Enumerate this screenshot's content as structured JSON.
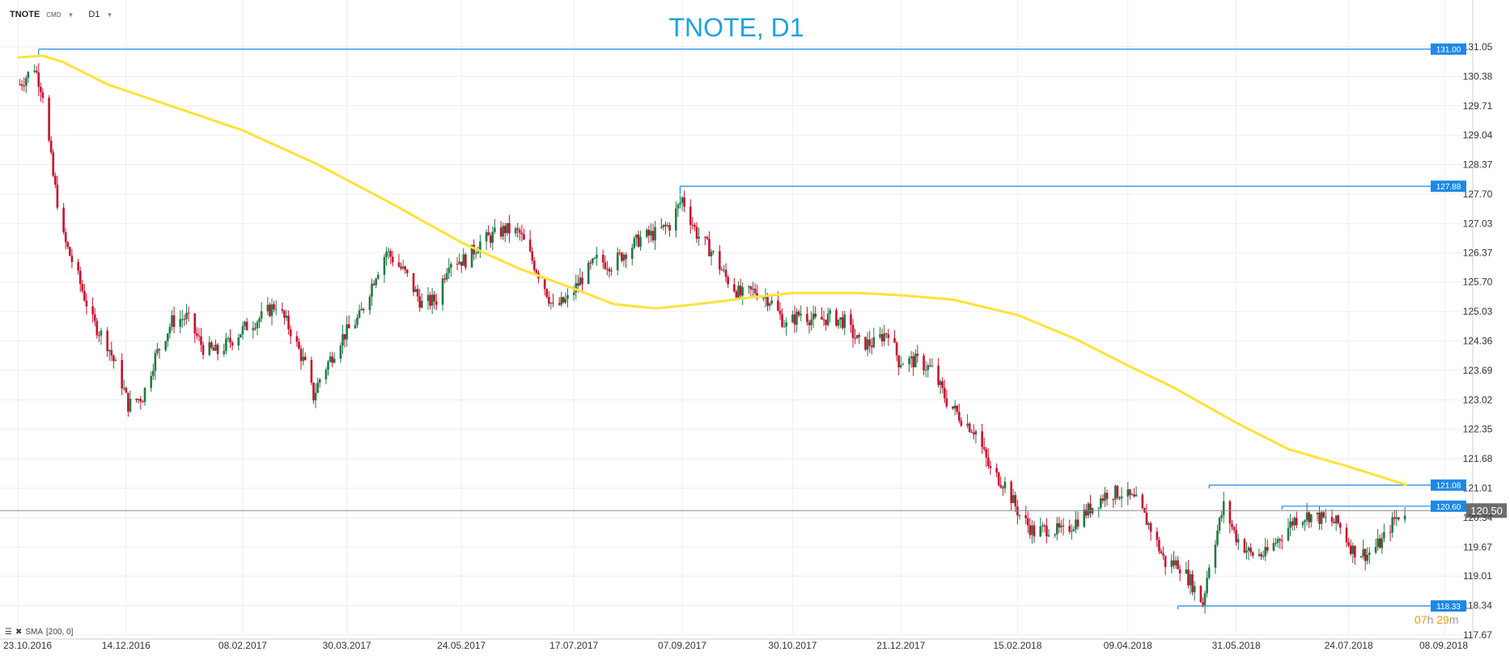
{
  "toolbar": {
    "symbol": "TNOTE",
    "symbol_sub": "CMD",
    "interval": "D1"
  },
  "title": "TNOTE, D1",
  "indicator": {
    "label": "SMA",
    "params": "[200, 0]"
  },
  "timer": {
    "hours": "07",
    "h_unit": "h",
    "minutes": "29",
    "m_unit": "m"
  },
  "colors": {
    "bull": "#1e7b45",
    "bear": "#c8102e",
    "sma": "#ffe238",
    "level": "#1e88e5",
    "grid": "#eeeeee",
    "axis_text": "#333333",
    "current": "#6d6d6d"
  },
  "chart_data": {
    "type": "candlestick",
    "title": "TNOTE, D1",
    "xlabel": "",
    "ylabel": "",
    "x_ticks": [
      "23.10.2016",
      "14.12.2016",
      "08.02.2017",
      "30.03.2017",
      "24.05.2017",
      "17.07.2017",
      "07.09.2017",
      "30.10.2017",
      "21.12.2017",
      "15.02.2018",
      "09.04.2018",
      "31.05.2018",
      "24.07.2018",
      "08.09.2018"
    ],
    "y_ticks": [
      "131.05",
      "130.38",
      "129.71",
      "129.04",
      "128.37",
      "127.70",
      "127.03",
      "126.37",
      "125.70",
      "125.03",
      "124.36",
      "123.69",
      "123.02",
      "122.35",
      "121.68",
      "121.01",
      "120.34",
      "119.67",
      "119.01",
      "118.34",
      "117.67"
    ],
    "ylim": [
      117.67,
      131.05
    ],
    "grid": true,
    "current_price": "120.50",
    "levels": [
      {
        "price": 131.0,
        "label": "131.00",
        "from": "2016-11-02"
      },
      {
        "price": 127.88,
        "label": "127.88",
        "from": "2017-09-06"
      },
      {
        "price": 121.08,
        "label": "121.08",
        "from": "2018-05-18"
      },
      {
        "price": 120.6,
        "label": "120.60",
        "from": "2018-06-22"
      },
      {
        "price": 118.33,
        "label": "118.33",
        "from": "2018-05-03"
      }
    ],
    "price_path": [
      [
        "2016-10-24",
        130.2
      ],
      [
        "2016-10-31",
        130.6
      ],
      [
        "2016-11-04",
        130.0
      ],
      [
        "2016-11-09",
        128.1
      ],
      [
        "2016-11-14",
        126.7
      ],
      [
        "2016-11-21",
        125.8
      ],
      [
        "2016-11-28",
        124.8
      ],
      [
        "2016-12-05",
        124.3
      ],
      [
        "2016-12-12",
        123.4
      ],
      [
        "2016-12-15",
        122.9
      ],
      [
        "2016-12-22",
        123.1
      ],
      [
        "2016-12-28",
        124.0
      ],
      [
        "2017-01-05",
        124.8
      ],
      [
        "2017-01-12",
        124.9
      ],
      [
        "2017-01-20",
        124.2
      ],
      [
        "2017-01-27",
        124.1
      ],
      [
        "2017-02-03",
        124.4
      ],
      [
        "2017-02-10",
        124.7
      ],
      [
        "2017-02-17",
        124.9
      ],
      [
        "2017-02-24",
        125.2
      ],
      [
        "2017-03-03",
        124.6
      ],
      [
        "2017-03-10",
        123.8
      ],
      [
        "2017-03-14",
        123.1
      ],
      [
        "2017-03-17",
        123.5
      ],
      [
        "2017-03-27",
        124.4
      ],
      [
        "2017-04-05",
        124.9
      ],
      [
        "2017-04-13",
        125.9
      ],
      [
        "2017-04-18",
        126.4
      ],
      [
        "2017-04-27",
        125.9
      ],
      [
        "2017-05-05",
        125.2
      ],
      [
        "2017-05-12",
        125.3
      ],
      [
        "2017-05-18",
        126.2
      ],
      [
        "2017-05-26",
        126.2
      ],
      [
        "2017-06-02",
        126.6
      ],
      [
        "2017-06-14",
        126.9
      ],
      [
        "2017-06-21",
        126.8
      ],
      [
        "2017-06-27",
        126.2
      ],
      [
        "2017-07-03",
        125.6
      ],
      [
        "2017-07-07",
        125.1
      ],
      [
        "2017-07-14",
        125.3
      ],
      [
        "2017-07-21",
        125.8
      ],
      [
        "2017-07-28",
        126.2
      ],
      [
        "2017-08-04",
        126.1
      ],
      [
        "2017-08-11",
        126.4
      ],
      [
        "2017-08-18",
        126.7
      ],
      [
        "2017-08-25",
        126.8
      ],
      [
        "2017-09-01",
        127.0
      ],
      [
        "2017-09-07",
        127.6
      ],
      [
        "2017-09-14",
        126.8
      ],
      [
        "2017-09-21",
        126.4
      ],
      [
        "2017-09-28",
        125.8
      ],
      [
        "2017-10-05",
        125.4
      ],
      [
        "2017-10-12",
        125.5
      ],
      [
        "2017-10-19",
        125.3
      ],
      [
        "2017-10-27",
        124.7
      ],
      [
        "2017-11-03",
        125.0
      ],
      [
        "2017-11-10",
        124.8
      ],
      [
        "2017-11-17",
        124.9
      ],
      [
        "2017-11-24",
        124.8
      ],
      [
        "2017-12-01",
        124.3
      ],
      [
        "2017-12-08",
        124.3
      ],
      [
        "2017-12-15",
        124.6
      ],
      [
        "2017-12-20",
        123.9
      ],
      [
        "2017-12-29",
        123.9
      ],
      [
        "2018-01-05",
        123.7
      ],
      [
        "2018-01-12",
        123.0
      ],
      [
        "2018-01-19",
        122.6
      ],
      [
        "2018-01-26",
        122.3
      ],
      [
        "2018-02-02",
        121.4
      ],
      [
        "2018-02-09",
        121.1
      ],
      [
        "2018-02-16",
        120.4
      ],
      [
        "2018-02-23",
        120.0
      ],
      [
        "2018-03-02",
        120.1
      ],
      [
        "2018-03-09",
        120.0
      ],
      [
        "2018-03-16",
        120.3
      ],
      [
        "2018-03-23",
        120.6
      ],
      [
        "2018-03-30",
        120.9
      ],
      [
        "2018-04-06",
        120.9
      ],
      [
        "2018-04-13",
        120.7
      ],
      [
        "2018-04-20",
        120.1
      ],
      [
        "2018-04-27",
        119.3
      ],
      [
        "2018-05-03",
        119.3
      ],
      [
        "2018-05-09",
        118.9
      ],
      [
        "2018-05-15",
        118.4
      ],
      [
        "2018-05-18",
        119.3
      ],
      [
        "2018-05-25",
        120.6
      ],
      [
        "2018-05-31",
        119.9
      ],
      [
        "2018-06-07",
        119.5
      ],
      [
        "2018-06-14",
        119.5
      ],
      [
        "2018-06-21",
        119.9
      ],
      [
        "2018-06-28",
        120.3
      ],
      [
        "2018-07-05",
        120.4
      ],
      [
        "2018-07-12",
        120.3
      ],
      [
        "2018-07-19",
        120.2
      ],
      [
        "2018-07-26",
        119.6
      ],
      [
        "2018-08-02",
        119.5
      ],
      [
        "2018-08-09",
        119.8
      ],
      [
        "2018-08-15",
        120.3
      ],
      [
        "2018-08-20",
        120.5
      ]
    ],
    "sma_path": [
      [
        "2016-10-23",
        130.81
      ],
      [
        "2016-11-04",
        130.85
      ],
      [
        "2016-11-14",
        130.7
      ],
      [
        "2016-12-05",
        130.2
      ],
      [
        "2017-01-05",
        129.7
      ],
      [
        "2017-02-08",
        129.15
      ],
      [
        "2017-03-15",
        128.4
      ],
      [
        "2017-04-20",
        127.5
      ],
      [
        "2017-05-24",
        126.6
      ],
      [
        "2017-06-21",
        126.0
      ],
      [
        "2017-07-17",
        125.55
      ],
      [
        "2017-08-05",
        125.2
      ],
      [
        "2017-08-25",
        125.1
      ],
      [
        "2017-09-15",
        125.2
      ],
      [
        "2017-10-10",
        125.35
      ],
      [
        "2017-10-30",
        125.45
      ],
      [
        "2017-12-01",
        125.45
      ],
      [
        "2017-12-21",
        125.4
      ],
      [
        "2018-01-15",
        125.3
      ],
      [
        "2018-02-15",
        124.95
      ],
      [
        "2018-03-15",
        124.4
      ],
      [
        "2018-04-09",
        123.8
      ],
      [
        "2018-05-01",
        123.3
      ],
      [
        "2018-05-31",
        122.5
      ],
      [
        "2018-06-25",
        121.9
      ],
      [
        "2018-07-24",
        121.5
      ],
      [
        "2018-08-21",
        121.08
      ]
    ]
  }
}
